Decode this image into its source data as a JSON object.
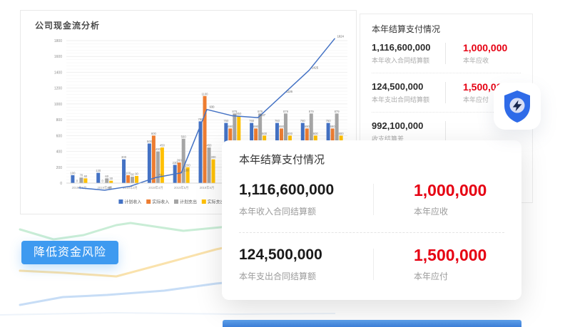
{
  "left_card": {
    "title": "公司现金流分析"
  },
  "chart_data": {
    "type": "bar",
    "title": "公司现金流分析",
    "categories": [
      "2019年1月",
      "2019年2月",
      "2019年3月",
      "2019年4月",
      "2019年5月",
      "2019年6月",
      "2019年7月",
      "2019年8月",
      "2019年9月",
      "2019年10月",
      "2019年11月"
    ],
    "series": [
      {
        "name": "计划收入",
        "type": "bar",
        "color": "#4472C4",
        "values": [
          100,
          130,
          300,
          500,
          230,
          780,
          760,
          760,
          760,
          760,
          760
        ]
      },
      {
        "name": "实际收入",
        "type": "bar",
        "color": "#ED7D31",
        "values": [
          0,
          0,
          100,
          600,
          260,
          1100,
          690,
          690,
          690,
          690,
          690
        ]
      },
      {
        "name": "计划支出",
        "type": "bar",
        "color": "#A5A5A5",
        "values": [
          70,
          60,
          80,
          400,
          560,
          450,
          879,
          879,
          879,
          879,
          879
        ]
      },
      {
        "name": "实际支出",
        "type": "bar",
        "color": "#FFC000",
        "values": [
          60,
          30,
          90,
          450,
          200,
          300,
          850,
          600,
          600,
          600,
          600
        ]
      },
      {
        "name": "累计结余",
        "type": "line",
        "color": "#4472C4",
        "in_legend": false,
        "values": [
          -60,
          -90,
          -40,
          70,
          130,
          930,
          850,
          827,
          1126,
          1425,
          1824
        ],
        "labels": [
          "",
          "-90",
          "",
          "70",
          "130",
          "930",
          "",
          "827",
          "1126",
          "1425",
          "1824"
        ]
      }
    ],
    "ylim": [
      -200,
      1800
    ],
    "ytick_step": 200,
    "grid": true,
    "legend_position": "bottom"
  },
  "summary_panel": {
    "title": "本年结算支付情况",
    "rows": [
      {
        "left_value": "1,116,600,000",
        "left_label": "本年收入合同结算额",
        "right_value": "1,000,000",
        "right_label": "本年应收"
      },
      {
        "left_value": "124,500,000",
        "left_label": "本年支出合同结算额",
        "right_value": "1,500,000",
        "right_label": "本年应付"
      },
      {
        "left_value": "992,100,000",
        "left_label": "收支结算差",
        "right_value": "",
        "right_label": ""
      }
    ],
    "highlight_color": "#E60012"
  },
  "popup": {
    "title": "本年结算支付情况",
    "rows": [
      {
        "left_value": "1,116,600,000",
        "left_label": "本年收入合同结算额",
        "right_value": "1,000,000",
        "right_label": "本年应收"
      },
      {
        "left_value": "124,500,000",
        "left_label": "本年支出合同结算额",
        "right_value": "1,500,000",
        "right_label": "本年应付"
      }
    ]
  },
  "risk_tag": {
    "label": "降低资金风险",
    "bg": "#3E9AF0"
  },
  "shield_badge": {
    "icon": "shield-lightning-icon",
    "shield_color": "#2F6BE8",
    "circle_color": "#D9DFF5",
    "bolt_color": "#17264D"
  }
}
